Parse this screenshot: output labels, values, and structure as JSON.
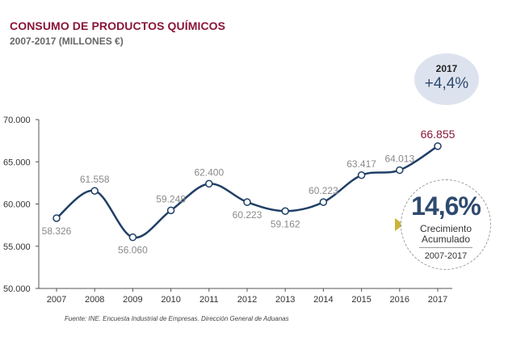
{
  "header": {
    "title": "CONSUMO DE PRODUCTOS QUÍMICOS",
    "subtitle": "2007-2017 (MILLONES €)"
  },
  "badge": {
    "year": "2017",
    "value": "+4,4%",
    "bg_color": "#dde3ee"
  },
  "growth": {
    "value": "14,6%",
    "line1": "Crecimiento",
    "line2": "Acumulado",
    "period": "2007-2017",
    "accent_color": "#c9b43a"
  },
  "footnote": "Fuente: INE. Encuesta Industrial de Empresas. Dirección General de Aduanas",
  "chart_data": {
    "type": "line",
    "categories": [
      "2007",
      "2008",
      "2009",
      "2010",
      "2011",
      "2012",
      "2013",
      "2014",
      "2015",
      "2016",
      "2017"
    ],
    "series": [
      {
        "values": [
          58326,
          61558,
          56060,
          59248,
          62400,
          60223,
          59162,
          60223,
          63417,
          64013,
          66855
        ],
        "labels": [
          "58.326",
          "61.558",
          "56.060",
          "59.248",
          "62.400",
          "60.223",
          "59.162",
          "60.223",
          "63.417",
          "64.013",
          "66.855"
        ],
        "color": "#1f3f66",
        "highlight_last_color": "#8a1538"
      }
    ],
    "ylim": [
      50000,
      70000
    ],
    "yticks": [
      50000,
      55000,
      60000,
      65000,
      70000
    ],
    "ytick_labels": [
      "50.000",
      "55.000",
      "60.000",
      "65.000",
      "70.000"
    ],
    "grid": false
  }
}
